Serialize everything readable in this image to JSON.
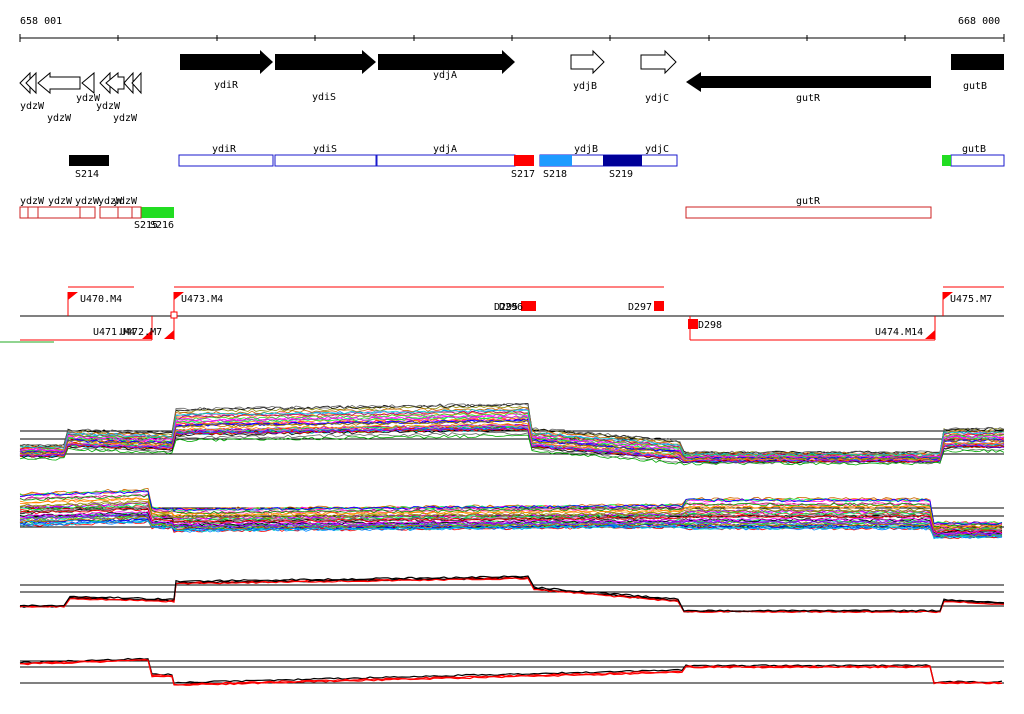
{
  "coords": {
    "start": "658 001",
    "end": "668 000"
  },
  "genes_top": [
    {
      "name": "ydiR",
      "strand": "+",
      "filled": true
    },
    {
      "name": "ydiS",
      "strand": "+",
      "filled": true
    },
    {
      "name": "ydjA",
      "strand": "+",
      "filled": true
    },
    {
      "name": "ydjB",
      "strand": "+",
      "filled": false
    },
    {
      "name": "ydjC",
      "strand": "+",
      "filled": false
    },
    {
      "name": "gutR",
      "strand": "-",
      "filled": true
    },
    {
      "name": "gutB",
      "strand": "+",
      "filled": true
    }
  ],
  "ydzw_labels": [
    "ydzW",
    "ydzW",
    "ydzW",
    "ydzW",
    "ydzW"
  ],
  "transcripts_plus": [
    "ydiR",
    "ydiS",
    "ydjA",
    "ydjB",
    "ydjC",
    "gutB"
  ],
  "transcripts_minus": [
    "ydzW",
    "ydzW",
    "ydzW",
    "ydzW",
    "ydzW",
    "gutR"
  ],
  "segments": [
    {
      "label": "S214",
      "color": "#000000"
    },
    {
      "label": "S215",
      "color": "#22dd22"
    },
    {
      "label": "S216",
      "color": "#22dd22"
    },
    {
      "label": "S217",
      "color": "#ff0000"
    },
    {
      "label": "S218",
      "color": "#1e9bff"
    },
    {
      "label": "S219",
      "color": "#000099"
    }
  ],
  "upshifts": [
    "U470.M4",
    "U471.M4",
    "U472.M7",
    "U473.M4",
    "U474.M14",
    "U475.M7"
  ],
  "downshifts": [
    "D295",
    "D296",
    "D297",
    "D298"
  ],
  "colors": {
    "filled": "#000000",
    "plus": "#1a1acc",
    "minus": "#cc2222",
    "red": "#ff0000"
  }
}
